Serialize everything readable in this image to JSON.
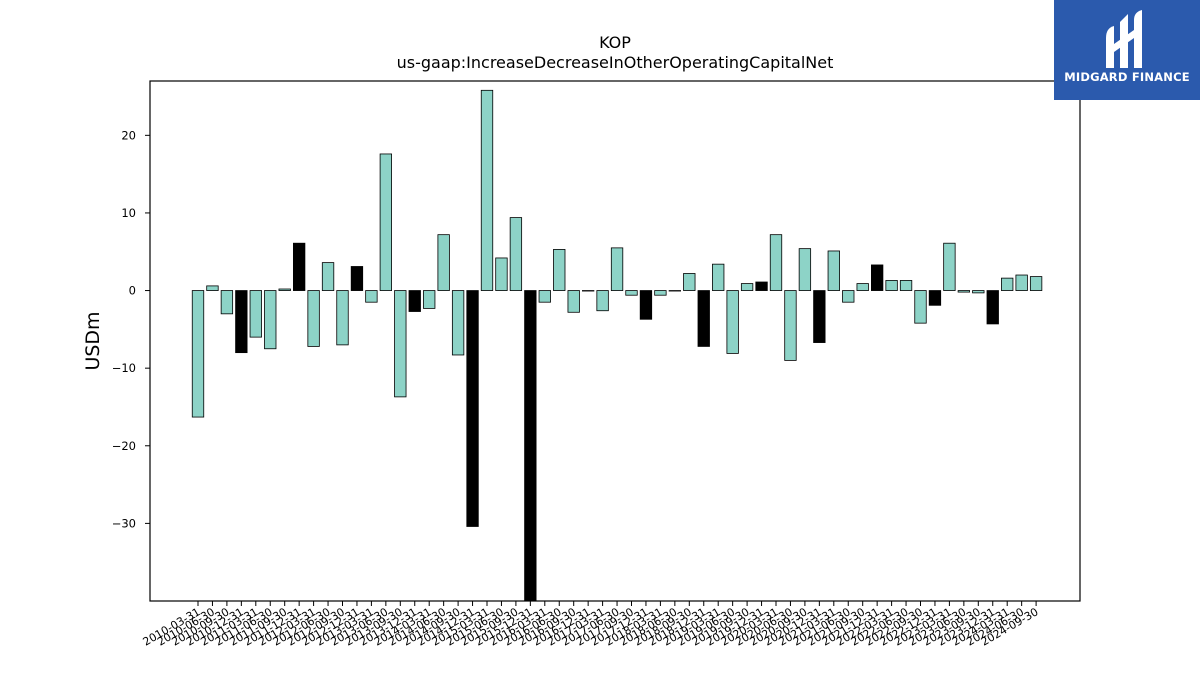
{
  "brand": {
    "name": "MIDGARD FINANCE",
    "bg_color": "#2b5aad",
    "icon": "midgard-m-logo-icon"
  },
  "chart_data": {
    "type": "bar",
    "title": "KOP",
    "subtitle": "us-gaap:IncreaseDecreaseInOtherOperatingCapitalNet",
    "ylabel": "USDm",
    "xlabel": "",
    "ylim": [
      -40,
      27
    ],
    "yticks": [
      -30,
      -20,
      -10,
      0,
      10,
      20
    ],
    "grid": false,
    "colors": {
      "quarter": "#8dd3c7",
      "fiscal_year": "#000000"
    },
    "categories": [
      "2010-03-31",
      "2010-06-30",
      "2010-09-30",
      "2010-12-31",
      "2011-03-31",
      "2011-06-30",
      "2011-09-30",
      "2011-12-31",
      "2012-03-31",
      "2012-06-30",
      "2012-09-30",
      "2012-12-31",
      "2013-03-31",
      "2013-06-30",
      "2013-09-30",
      "2013-12-31",
      "2014-03-31",
      "2014-06-30",
      "2014-09-30",
      "2014-12-31",
      "2015-03-31",
      "2015-06-30",
      "2015-09-30",
      "2015-12-31",
      "2016-03-31",
      "2016-06-30",
      "2016-09-30",
      "2016-12-31",
      "2017-03-31",
      "2017-06-30",
      "2017-09-30",
      "2017-12-31",
      "2018-03-31",
      "2018-06-30",
      "2018-09-30",
      "2018-12-31",
      "2019-03-31",
      "2019-06-30",
      "2019-09-30",
      "2019-12-31",
      "2020-03-31",
      "2020-06-30",
      "2020-09-30",
      "2020-12-31",
      "2021-03-31",
      "2021-06-30",
      "2021-09-30",
      "2021-12-31",
      "2022-03-31",
      "2022-06-30",
      "2022-09-30",
      "2022-12-31",
      "2023-03-31",
      "2023-06-30",
      "2023-09-30",
      "2023-12-31",
      "2024-03-31",
      "2024-06-30",
      "2024-09-30"
    ],
    "values": [
      -16.3,
      0.6,
      -3.0,
      -8.0,
      -6.0,
      -7.5,
      0.2,
      6.1,
      -7.2,
      3.6,
      -7.0,
      3.1,
      -1.5,
      17.6,
      -13.7,
      -2.7,
      -2.3,
      7.2,
      -8.3,
      -30.4,
      25.8,
      4.2,
      9.4,
      -40.0,
      -1.5,
      5.3,
      -2.8,
      0.0,
      -2.6,
      5.5,
      -0.6,
      -3.7,
      -0.6,
      0.0,
      2.2,
      -7.2,
      3.4,
      -8.1,
      0.9,
      1.1,
      7.2,
      -9.0,
      5.4,
      -6.7,
      5.1,
      -1.5,
      0.9,
      3.3,
      1.3,
      1.3,
      -4.2,
      -1.9,
      6.1,
      -0.2,
      -0.3,
      -4.3,
      1.6,
      2.0,
      1.8
    ],
    "fiscal_year_flags": [
      0,
      0,
      0,
      1,
      0,
      0,
      0,
      1,
      0,
      0,
      0,
      1,
      0,
      0,
      0,
      1,
      0,
      0,
      0,
      1,
      0,
      0,
      0,
      1,
      0,
      0,
      0,
      1,
      0,
      0,
      0,
      1,
      0,
      0,
      0,
      1,
      0,
      0,
      0,
      1,
      0,
      0,
      0,
      1,
      0,
      0,
      0,
      1,
      0,
      0,
      0,
      1,
      0,
      0,
      0,
      1,
      0,
      0,
      0
    ]
  }
}
